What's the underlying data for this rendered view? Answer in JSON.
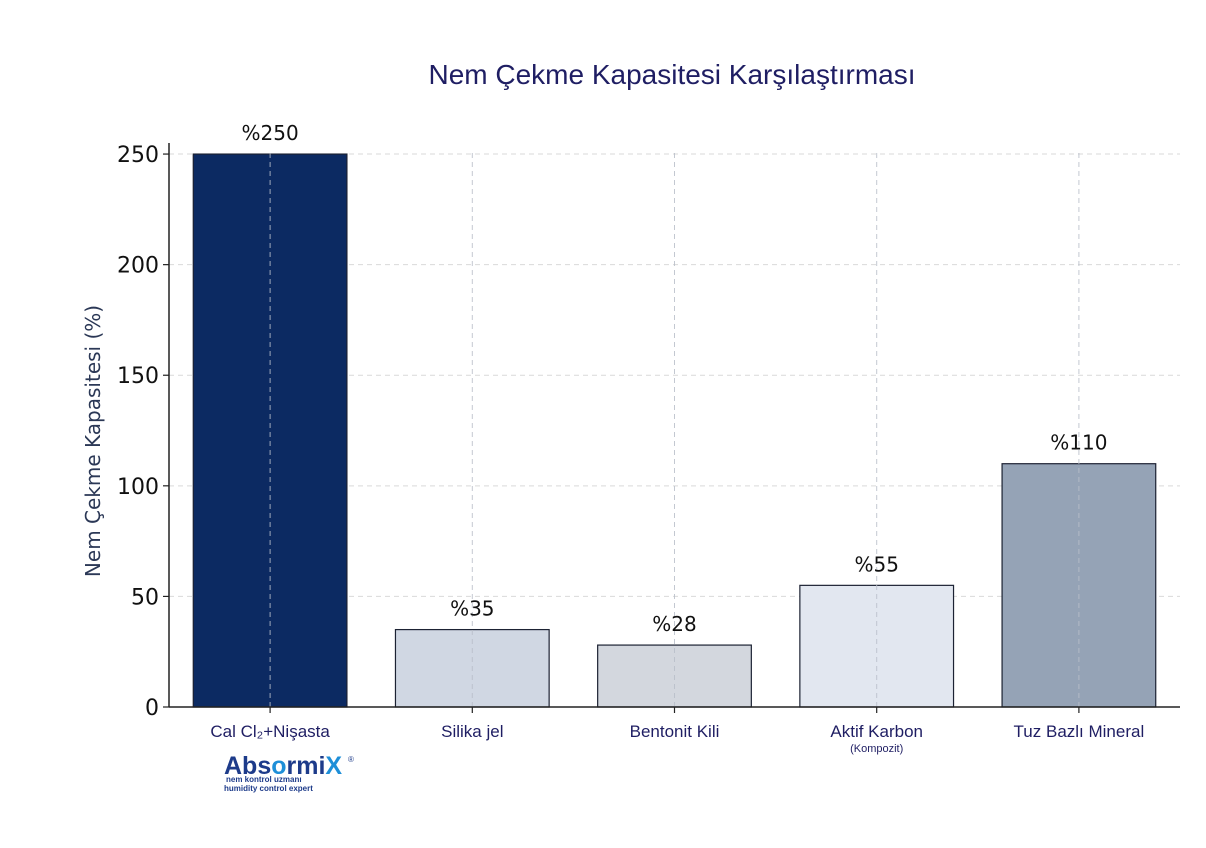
{
  "chart_data": {
    "type": "bar",
    "title": "Nem Çekme Kapasitesi Karşılaştırması",
    "xlabel": "",
    "ylabel": "Nem Çekme Kapasitesi (%)",
    "ylim": [
      0,
      255
    ],
    "yticks": [
      0,
      50,
      100,
      150,
      200,
      250
    ],
    "grid": true,
    "categories": [
      "Cal Cl₂+Nişasta",
      "Silika jel",
      "Bentonit Kili",
      "Aktif Karbon",
      "Tuz Bazlı Mineral"
    ],
    "category_sublabels": [
      "",
      "",
      "",
      "(Kompozit)",
      ""
    ],
    "values": [
      250,
      35,
      28,
      55,
      110
    ],
    "data_labels": [
      "%250",
      "%35",
      "%28",
      "%55",
      "%110"
    ],
    "colors": [
      "#0c2a62",
      "#d0d7e3",
      "#d3d7de",
      "#e2e7f0",
      "#95a3b6"
    ],
    "edge_color": "#1c2233"
  },
  "logo": {
    "brand_before": "Abs",
    "brand_after": "rmi",
    "brand_mark": "X",
    "registered": "®",
    "tagline_tr": "nem kontrol uzmanı",
    "tagline_en": "humidity control expert"
  }
}
